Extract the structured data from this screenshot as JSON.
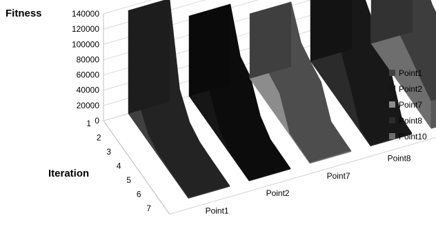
{
  "chart_data": {
    "type": "3d-line-ribbon",
    "y_title": "Fitness",
    "depth_title": "Iteration",
    "y_ticks": [
      "140000",
      "120000",
      "100000",
      "80000",
      "60000",
      "40000",
      "20000",
      "0"
    ],
    "ylim": [
      0,
      140000
    ],
    "iterations": [
      "1",
      "2",
      "3",
      "4",
      "5",
      "6",
      "7"
    ],
    "series": [
      {
        "name": "Point1",
        "color": "#404040",
        "values": [
          135000,
          35000,
          10000,
          3000,
          2000,
          1500,
          1200
        ]
      },
      {
        "name": "Point2",
        "color": "#161616",
        "values": [
          105000,
          55000,
          47000,
          14000,
          2000,
          1500,
          1200
        ]
      },
      {
        "name": "Point7",
        "color": "#8c8c8c",
        "values": [
          85000,
          50000,
          42000,
          36000,
          2500,
          1500,
          1200
        ]
      },
      {
        "name": "Point8",
        "color": "#2b2b2b",
        "values": [
          103000,
          96000,
          78000,
          71000,
          40000,
          3000,
          1500
        ]
      },
      {
        "name": "Point10",
        "color": "#6e6e6e",
        "values": [
          96000,
          90000,
          72000,
          64000,
          55000,
          45000,
          36000
        ]
      }
    ],
    "grid": true,
    "legend": "right"
  }
}
